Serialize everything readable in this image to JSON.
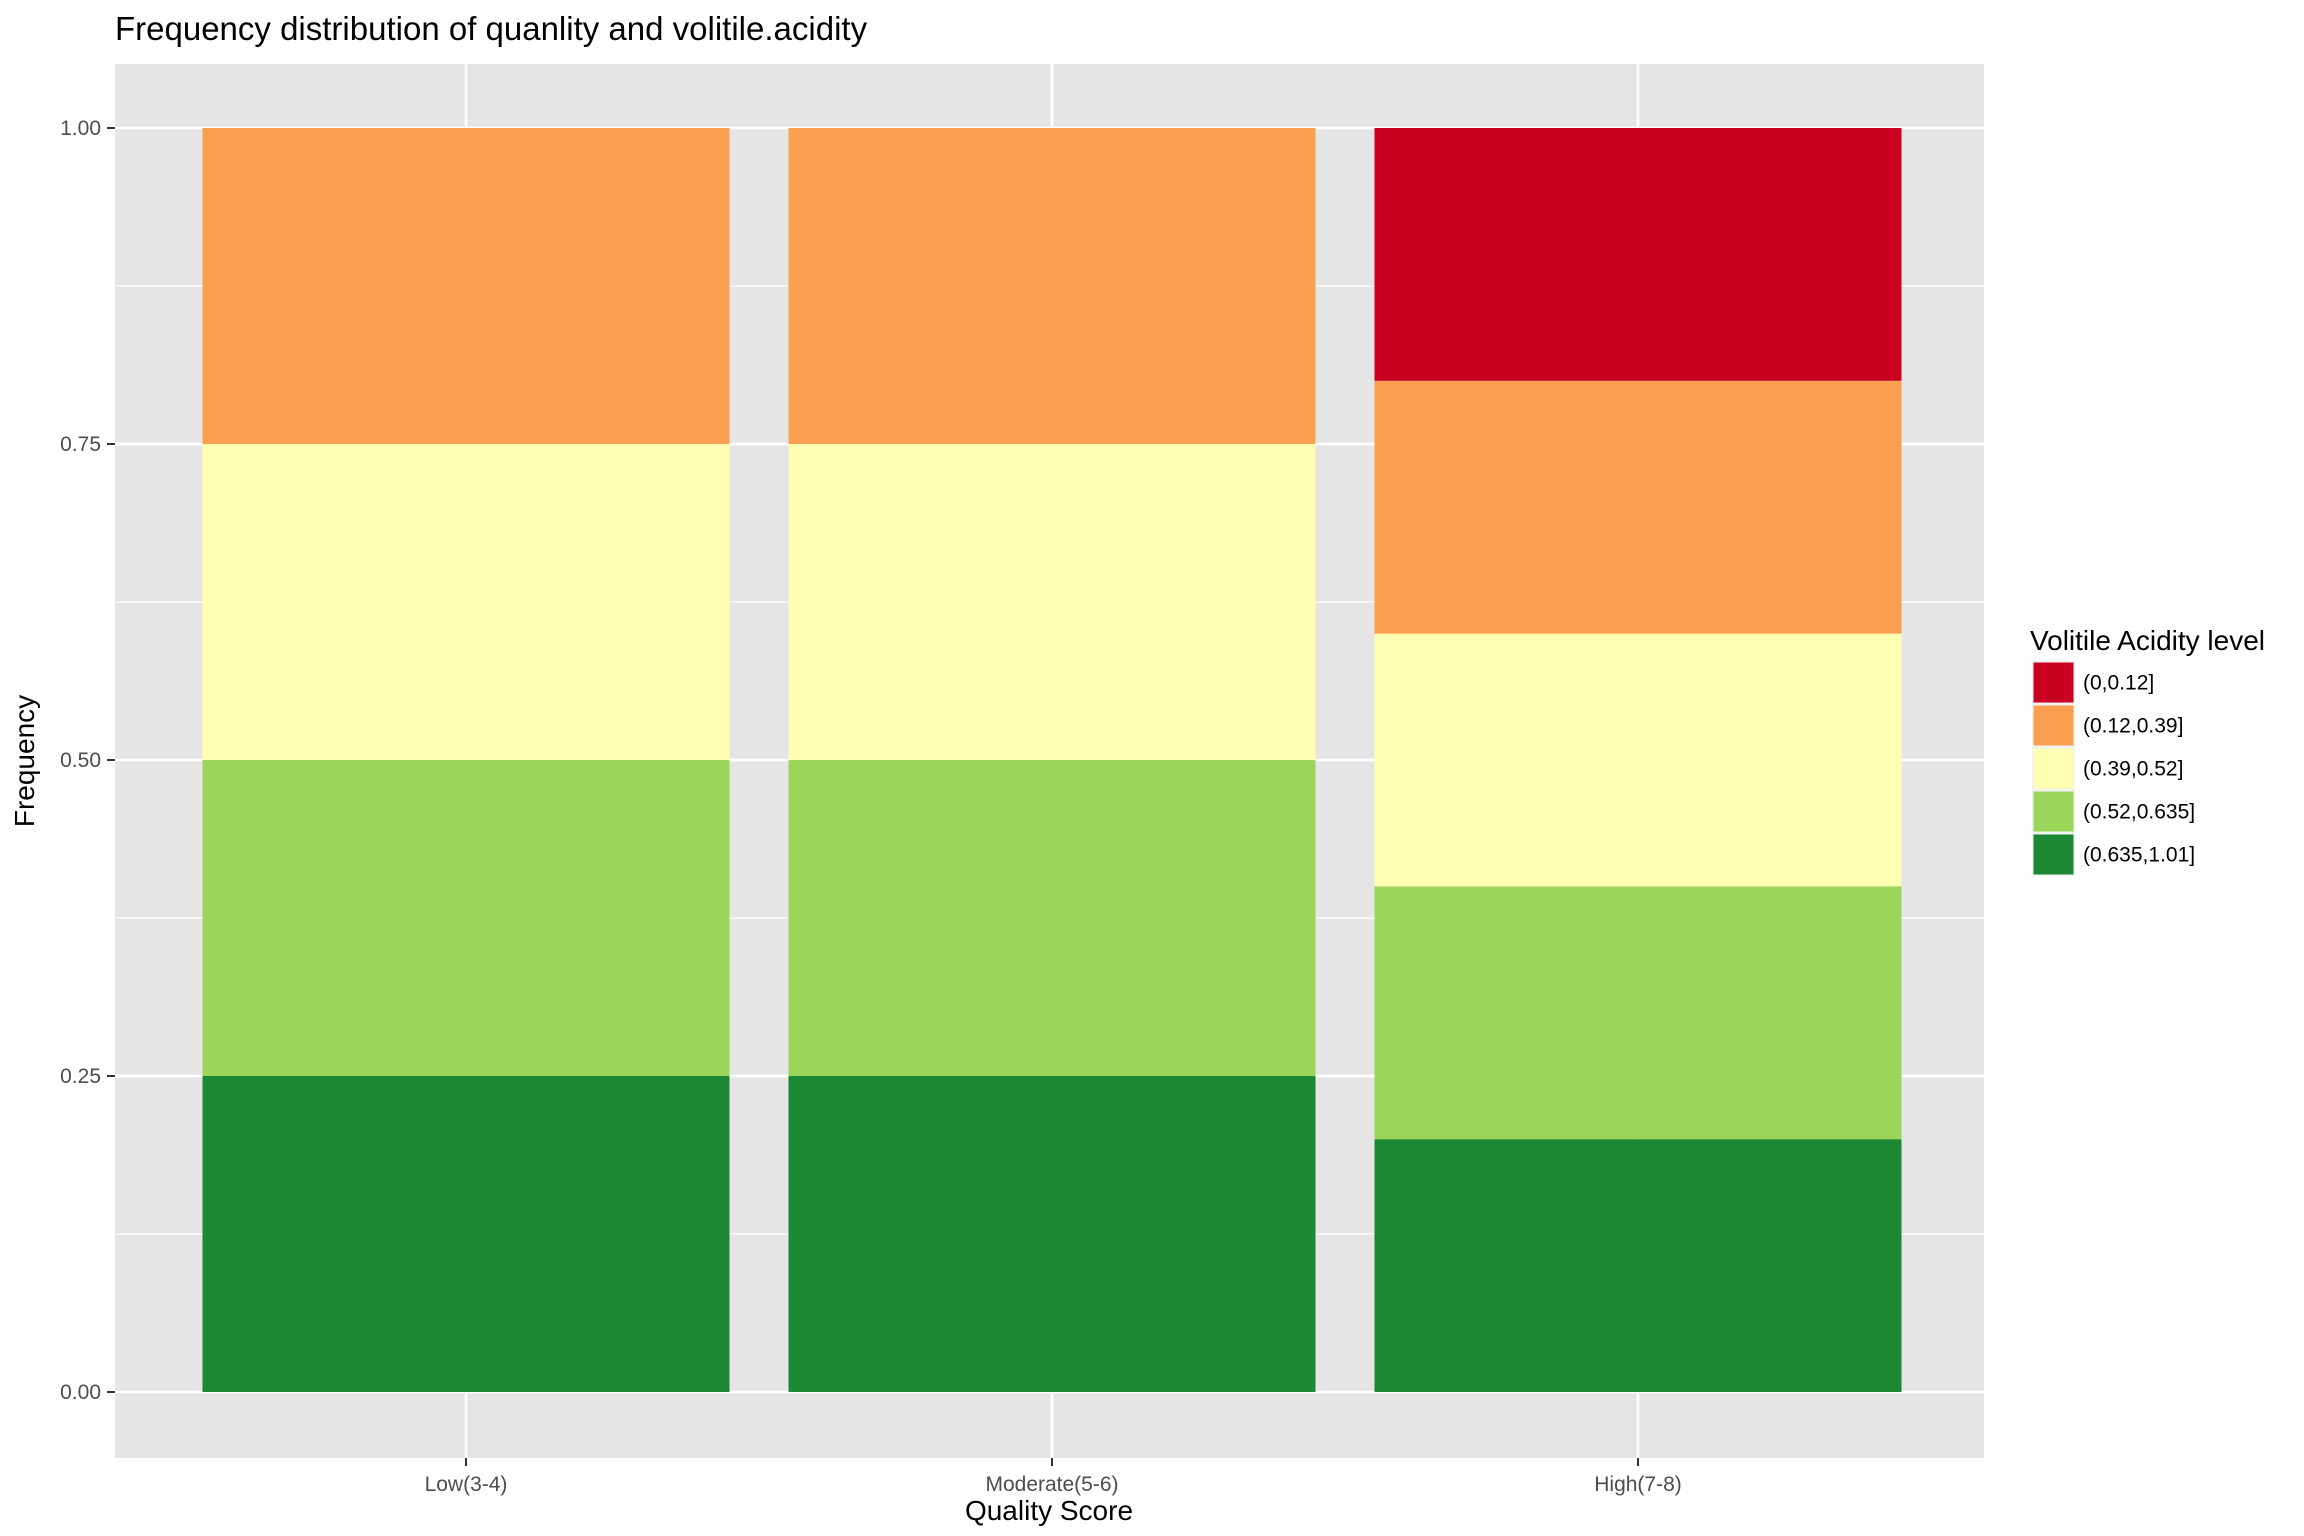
{
  "chart_data": {
    "type": "bar",
    "stacked": true,
    "title": "Frequency distribution of quanlity and volitile.acidity",
    "xlabel": "Quality Score",
    "ylabel": "Frequency",
    "ylim": [
      0,
      1
    ],
    "yticks": [
      "0.00",
      "0.25",
      "0.50",
      "0.75",
      "1.00"
    ],
    "categories": [
      "Low(3-4)",
      "Moderate(5-6)",
      "High(7-8)"
    ],
    "legend_title": "Volitile Acidity level",
    "legend_position": "right",
    "grid": true,
    "series": [
      {
        "name": "(0,0.12]",
        "color": "#ca0020",
        "values": [
          0,
          0,
          0.2
        ]
      },
      {
        "name": "(0.12,0.39]",
        "color": "#fa9f51",
        "values": [
          0.25,
          0.25,
          0.2
        ]
      },
      {
        "name": "(0.39,0.52]",
        "color": "#feffb0",
        "values": [
          0.25,
          0.25,
          0.2
        ]
      },
      {
        "name": "(0.52,0.635]",
        "color": "#9bd55a",
        "values": [
          0.25,
          0.25,
          0.2
        ]
      },
      {
        "name": "(0.635,1.01]",
        "color": "#1d8834",
        "values": [
          0.25,
          0.25,
          0.2
        ]
      }
    ],
    "colors": {
      "panel_background": "#e5e5e5",
      "grid_line": "#ffffff"
    }
  }
}
